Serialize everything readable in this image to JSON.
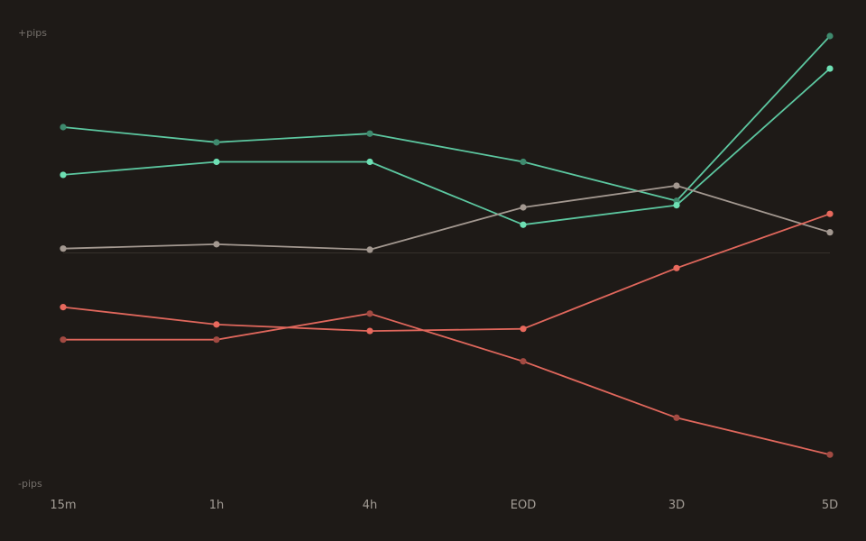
{
  "chart_data": {
    "type": "line",
    "title": "",
    "xlabel": "",
    "ylabel": "",
    "y_top_label": "+pips",
    "y_bottom_label": "-pips",
    "categories": [
      "15m",
      "1h",
      "4h",
      "EOD",
      "3D",
      "5D"
    ],
    "ylim": [
      -100,
      100
    ],
    "zero_line": true,
    "grid": false,
    "legend": "none",
    "series": [
      {
        "values": [
          58,
          51,
          55,
          42,
          24,
          100
        ],
        "color": "#5cc7a0",
        "point_color": "#3f8a6e"
      },
      {
        "values": [
          36,
          42,
          42,
          13,
          22,
          85
        ],
        "color": "#5cc7a0",
        "point_color": "#6ee0b4"
      },
      {
        "values": [
          2,
          4,
          1.5,
          21,
          31,
          9.5
        ],
        "color": "#a39890",
        "point_color": "#a39890"
      },
      {
        "values": [
          -25,
          -33,
          -36,
          -35,
          -7,
          18
        ],
        "color": "#e0675c",
        "point_color": "#e8695d"
      },
      {
        "values": [
          -40,
          -40,
          -28,
          -50,
          -76,
          -93
        ],
        "color": "#e0675c",
        "point_color": "#a24a42"
      }
    ]
  }
}
